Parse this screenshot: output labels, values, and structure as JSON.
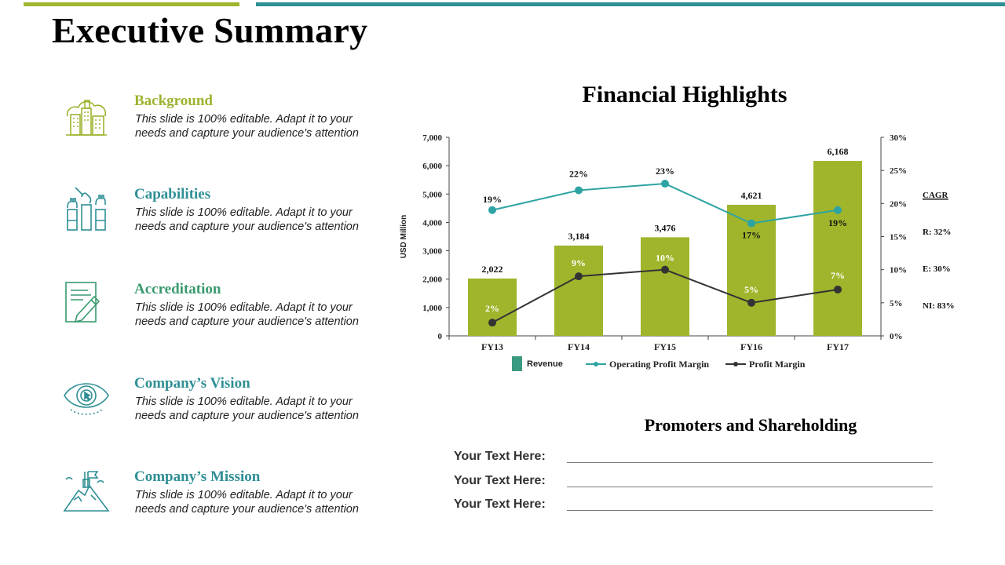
{
  "page_title": "Executive Summary",
  "colors": {
    "green": "#a0b52b",
    "teal": "#2e8f95",
    "dark": "#333333"
  },
  "features": [
    {
      "title": "Background",
      "icon": "city-icon",
      "title_color": "#9fb22f",
      "desc_line1": "This slide is 100% editable. Adapt it to your",
      "desc_line2": "needs and capture your audience's attention"
    },
    {
      "title": "Capabilities",
      "icon": "raised-hands-icon",
      "title_color": "#2e8f95",
      "desc_line1": "This slide is 100% editable. Adapt it to your",
      "desc_line2": "needs and capture your audience's attention"
    },
    {
      "title": "Accreditation",
      "icon": "certificate-pen-icon",
      "title_color": "#3a9a6e",
      "desc_line1": "This slide is 100% editable. Adapt it to your",
      "desc_line2": "needs and capture your audience's attention"
    },
    {
      "title": "Company’s Vision",
      "icon": "eye-icon",
      "title_color": "#2e8f95",
      "desc_line1": "This slide is 100% editable. Adapt it to your",
      "desc_line2": "needs and capture your audience's attention"
    },
    {
      "title": "Company’s Mission",
      "icon": "mountain-flag-icon",
      "title_color": "#2e8f95",
      "desc_line1": "This slide is 100% editable. Adapt it to your",
      "desc_line2": "needs and capture your audience's attention"
    }
  ],
  "chart_data": {
    "type": "bar",
    "title": "Financial Highlights",
    "categories": [
      "FY13",
      "FY14",
      "FY15",
      "FY16",
      "FY17"
    ],
    "ylabel": "USD Million",
    "ylim": [
      0,
      7000
    ],
    "yticks": [
      "0",
      "1,000",
      "2,000",
      "3,000",
      "4,000",
      "5,000",
      "6,000",
      "7,000"
    ],
    "y2lim": [
      0,
      30
    ],
    "y2ticks": [
      "0%",
      "5%",
      "10%",
      "15%",
      "20%",
      "25%",
      "30%"
    ],
    "series": [
      {
        "name": "Revenue",
        "kind": "bar",
        "axis": "left",
        "color": "#a0b52b",
        "values": [
          2022,
          3184,
          3476,
          4621,
          6168
        ],
        "labels": [
          "2,022",
          "3,184",
          "3,476",
          "4,621",
          "6,168"
        ]
      },
      {
        "name": "Operating Profit Margin",
        "kind": "line",
        "axis": "right",
        "color": "#2ea3a3",
        "values": [
          19,
          22,
          23,
          17,
          19
        ],
        "labels": [
          "19%",
          "22%",
          "23%",
          "17%",
          "19%"
        ]
      },
      {
        "name": "Profit Margin",
        "kind": "line",
        "axis": "right",
        "color": "#333333",
        "values": [
          2,
          9,
          10,
          5,
          7
        ],
        "labels": [
          "2%",
          "9%",
          "10%",
          "5%",
          "7%"
        ]
      }
    ],
    "legend": {
      "revenue": "Revenue",
      "opm": "Operating Profit Margin",
      "pm": "Profit Margin"
    },
    "cagr": {
      "title": "CAGR",
      "r": "R: 32%",
      "e": "E: 30%",
      "ni": "NI: 83%"
    }
  },
  "promoters": {
    "title": "Promoters and Shareholding",
    "rows": [
      "Your Text Here:",
      "Your Text Here:",
      "Your Text Here:"
    ]
  }
}
